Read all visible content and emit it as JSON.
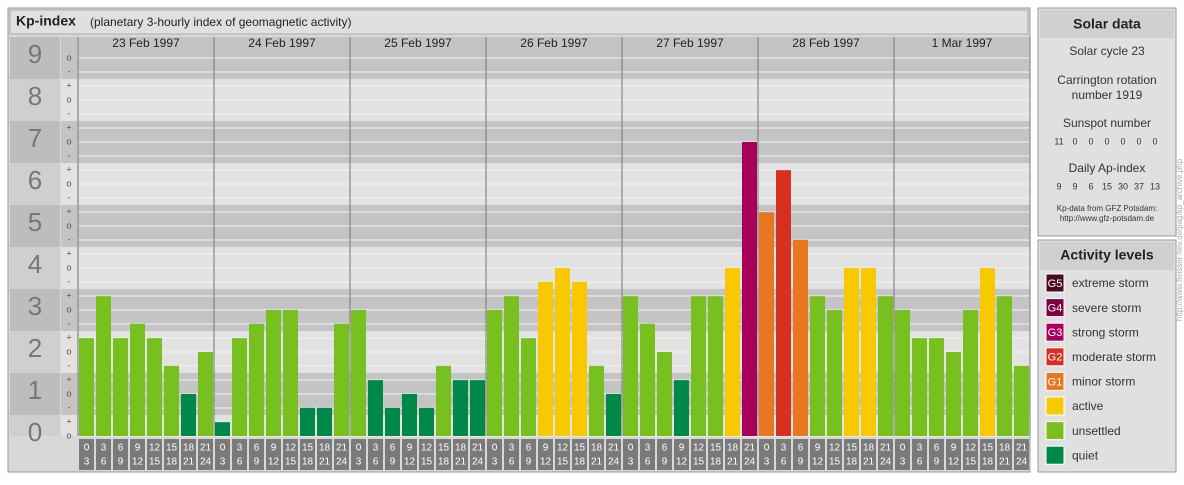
{
  "chart_data": {
    "type": "bar",
    "title": "Kp-index",
    "subtitle": "(planetary 3-hourly index of geomagnetic activity)",
    "ylim": [
      0,
      9.5
    ],
    "yticks": [
      0,
      1,
      2,
      3,
      4,
      5,
      6,
      7,
      8,
      9
    ],
    "minor_tick_labels": [
      "-",
      "o",
      "+"
    ],
    "hour_starts": [
      0,
      3,
      6,
      9,
      12,
      15,
      18,
      21
    ],
    "hour_ends": [
      3,
      6,
      9,
      12,
      15,
      18,
      21,
      24
    ],
    "grid": true,
    "series": [
      {
        "name": "23 Feb 1997",
        "values": [
          2.33,
          3.33,
          2.33,
          2.67,
          2.33,
          1.67,
          1,
          2
        ],
        "colors": [
          "#78c020",
          "#78c020",
          "#78c020",
          "#78c020",
          "#78c020",
          "#78c020",
          "#008848",
          "#78c020"
        ]
      },
      {
        "name": "24 Feb 1997",
        "values": [
          0.33,
          2.33,
          2.67,
          3,
          3,
          0.67,
          0.67,
          2.67
        ],
        "colors": [
          "#008848",
          "#78c020",
          "#78c020",
          "#78c020",
          "#78c020",
          "#008848",
          "#008848",
          "#78c020"
        ]
      },
      {
        "name": "25 Feb 1997",
        "values": [
          3,
          1.33,
          0.67,
          1,
          0.67,
          1.67,
          1.33,
          1.33
        ],
        "colors": [
          "#78c020",
          "#008848",
          "#008848",
          "#008848",
          "#008848",
          "#78c020",
          "#008848",
          "#008848"
        ]
      },
      {
        "name": "26 Feb 1997",
        "values": [
          3,
          3.33,
          2.33,
          3.67,
          4,
          3.67,
          1.67,
          1
        ],
        "colors": [
          "#78c020",
          "#78c020",
          "#78c020",
          "#f8c800",
          "#f8c800",
          "#f8c800",
          "#78c020",
          "#008848"
        ]
      },
      {
        "name": "27 Feb 1997",
        "values": [
          3.33,
          2.67,
          2,
          1.33,
          3.33,
          3.33,
          4,
          7
        ],
        "colors": [
          "#78c020",
          "#78c020",
          "#78c020",
          "#008848",
          "#78c020",
          "#78c020",
          "#f8c800",
          "#a8005a"
        ]
      },
      {
        "name": "28 Feb 1997",
        "values": [
          5.33,
          6.33,
          4.67,
          3.33,
          3,
          4,
          4,
          3.33
        ],
        "colors": [
          "#e87820",
          "#d83020",
          "#e87820",
          "#78c020",
          "#78c020",
          "#f8c800",
          "#f8c800",
          "#78c020"
        ]
      },
      {
        "name": "1 Mar 1997",
        "values": [
          3,
          2.33,
          2.33,
          2,
          3,
          4,
          3.33,
          1.67
        ],
        "colors": [
          "#78c020",
          "#78c020",
          "#78c020",
          "#78c020",
          "#78c020",
          "#f8c800",
          "#78c020",
          "#78c020"
        ]
      }
    ]
  },
  "solar_data": {
    "title": "Solar data",
    "solar_cycle": "Solar cycle 23",
    "carrington_line1": "Carrington rotation",
    "carrington_line2": "number 1919",
    "sunspot_title": "Sunspot number",
    "sunspot_numbers": [
      11,
      0,
      0,
      0,
      0,
      0,
      0
    ],
    "ap_title": "Daily Ap-index",
    "ap_values": [
      9,
      9,
      6,
      15,
      30,
      37,
      13
    ],
    "source_line1": "Kp-data from GFZ Potsdam:",
    "source_line2": "http://www.gfz-potsdam.de"
  },
  "activity_levels": {
    "title": "Activity levels",
    "items": [
      {
        "badge": "G5",
        "label": "extreme storm",
        "color": "#4a0a24"
      },
      {
        "badge": "G4",
        "label": "severe storm",
        "color": "#800040"
      },
      {
        "badge": "G3",
        "label": "strong storm",
        "color": "#a8005a"
      },
      {
        "badge": "G2",
        "label": "moderate storm",
        "color": "#d83020"
      },
      {
        "badge": "G1",
        "label": "minor storm",
        "color": "#e87820"
      },
      {
        "label": "active",
        "color": "#f8c800"
      },
      {
        "label": "unsettled",
        "color": "#78c020"
      },
      {
        "label": "quiet",
        "color": "#008848"
      }
    ]
  },
  "watermark": "http://www.fleisser-tiev.de/pag/kp_archive.php"
}
